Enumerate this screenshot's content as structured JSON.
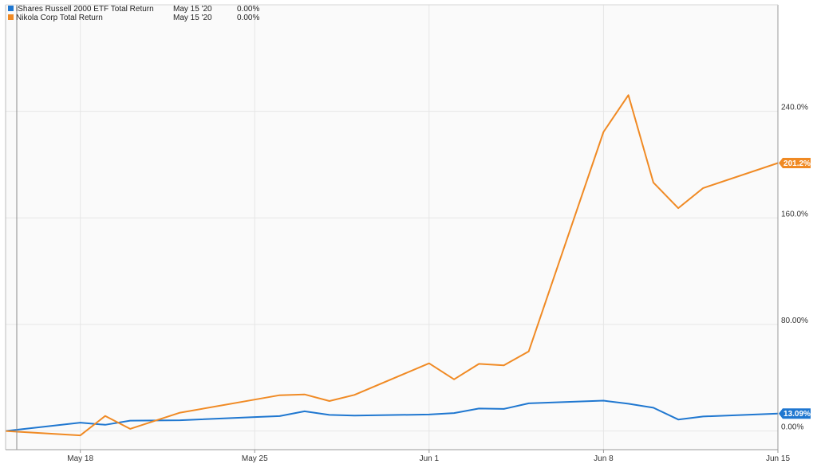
{
  "chart_data": {
    "type": "line",
    "title": "",
    "xlabel": "",
    "ylabel": "",
    "x_ticks": [
      {
        "label": "May 18",
        "day": 3
      },
      {
        "label": "May 25",
        "day": 10
      },
      {
        "label": "Jun 1",
        "day": 17
      },
      {
        "label": "Jun 8",
        "day": 24
      },
      {
        "label": "Jun 15",
        "day": 31
      }
    ],
    "y_ticks": [
      {
        "label": "0.00%",
        "value": 0
      },
      {
        "label": "80.00%",
        "value": 80
      },
      {
        "label": "160.0%",
        "value": 160
      },
      {
        "label": "240.0%",
        "value": 240
      }
    ],
    "xlim": [
      0,
      31
    ],
    "ylim": [
      -14,
      320
    ],
    "grid": true,
    "legend_position": "top-left",
    "series": [
      {
        "name": "iShares Russell 2000 ETF Total Return",
        "legend_date": "May 15 '20",
        "legend_value": "0.00%",
        "color": "#1f77d0",
        "end_label": "13.09%",
        "x": [
          0,
          3,
          4,
          5,
          7,
          10,
          11,
          12,
          13,
          14,
          17,
          18,
          19,
          20,
          21,
          24,
          25,
          26,
          27,
          28,
          31
        ],
        "y": [
          0,
          6.3,
          4.7,
          7.8,
          8.1,
          10.5,
          11.2,
          14.8,
          12.1,
          11.6,
          12.4,
          13.5,
          16.9,
          16.6,
          20.8,
          22.8,
          20.5,
          17.5,
          8.6,
          10.9,
          13.09
        ]
      },
      {
        "name": "Nikola Corp Total Return",
        "legend_date": "May 15 '20",
        "legend_value": "0.00%",
        "color": "#f08a24",
        "end_label": "201.2%",
        "x": [
          0,
          3,
          4,
          5,
          7,
          10,
          11,
          12,
          13,
          14,
          17,
          18,
          19,
          20,
          21,
          24,
          25,
          26,
          27,
          28,
          31
        ],
        "y": [
          0,
          -3.3,
          11.3,
          1.6,
          13.8,
          23.6,
          26.9,
          27.5,
          22.5,
          27.1,
          50.8,
          38.8,
          50.4,
          49.3,
          59.8,
          224.5,
          252.2,
          186.6,
          167.3,
          182.4,
          201.2
        ]
      }
    ]
  }
}
